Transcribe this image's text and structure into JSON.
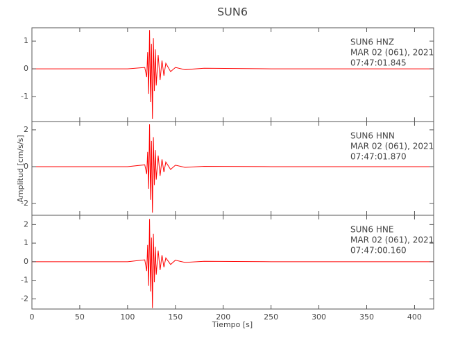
{
  "chart_data": [
    {
      "type": "line",
      "title": "SUN6",
      "annotation": [
        "SUN6   HNZ",
        "MAR 02 (061), 2021",
        "07:47:01.845"
      ],
      "xlim": [
        0,
        420
      ],
      "ylim": [
        -1.9,
        1.48
      ],
      "yticks": [
        -1,
        0,
        1
      ],
      "x": [
        0,
        50,
        100,
        118,
        120,
        121,
        122,
        123,
        124,
        125,
        126,
        127,
        128,
        129,
        130,
        132,
        134,
        136,
        138,
        140,
        145,
        150,
        160,
        180,
        250,
        420
      ],
      "series": [
        {
          "color": "#ff0000",
          "values": [
            0,
            0,
            0,
            0.05,
            -0.3,
            0.6,
            -0.9,
            1.4,
            -1.2,
            0.9,
            -1.8,
            1.1,
            -0.8,
            0.7,
            -0.6,
            0.5,
            -0.4,
            0.3,
            -0.25,
            0.2,
            -0.1,
            0.05,
            -0.03,
            0.02,
            0,
            0
          ]
        }
      ]
    },
    {
      "type": "line",
      "ylabel": "Amplitud [cm/s/s]",
      "annotation": [
        "SUN6   HNN",
        "MAR 02 (061), 2021",
        "07:47:01.870"
      ],
      "xlim": [
        0,
        420
      ],
      "ylim": [
        -2.64,
        2.45
      ],
      "yticks": [
        -2,
        0,
        2
      ],
      "x": [
        0,
        50,
        100,
        118,
        120,
        121,
        122,
        123,
        124,
        125,
        126,
        127,
        128,
        129,
        130,
        132,
        134,
        136,
        138,
        140,
        145,
        150,
        160,
        180,
        250,
        420
      ],
      "series": [
        {
          "color": "#ff0000",
          "values": [
            0,
            0,
            0,
            0.1,
            -0.4,
            0.8,
            -1.2,
            2.3,
            -1.8,
            1.4,
            -2.5,
            1.6,
            -1.0,
            0.9,
            -0.7,
            0.6,
            -0.5,
            0.4,
            -0.3,
            0.25,
            -0.15,
            0.08,
            -0.04,
            0.02,
            0,
            0
          ]
        }
      ]
    },
    {
      "type": "line",
      "xlabel": "Tiempo [s]",
      "annotation": [
        "SUN6   HNE",
        "MAR 02 (061), 2021",
        "07:47:00.160"
      ],
      "xlim": [
        0,
        420
      ],
      "ylim": [
        -2.55,
        2.5
      ],
      "yticks": [
        -2,
        -1,
        0,
        1,
        2
      ],
      "xticks": [
        0,
        50,
        100,
        150,
        200,
        250,
        300,
        350,
        400
      ],
      "x": [
        0,
        50,
        100,
        118,
        120,
        121,
        122,
        123,
        124,
        125,
        126,
        127,
        128,
        129,
        130,
        132,
        134,
        136,
        138,
        140,
        145,
        150,
        160,
        180,
        250,
        420
      ],
      "series": [
        {
          "color": "#ff0000",
          "values": [
            0,
            0,
            0,
            0.1,
            -0.5,
            0.9,
            -1.3,
            2.3,
            -1.6,
            1.3,
            -2.5,
            1.5,
            -1.1,
            0.8,
            -0.7,
            0.6,
            -0.45,
            0.35,
            -0.3,
            0.2,
            -0.15,
            0.08,
            -0.04,
            0.02,
            0,
            0
          ]
        }
      ]
    }
  ]
}
